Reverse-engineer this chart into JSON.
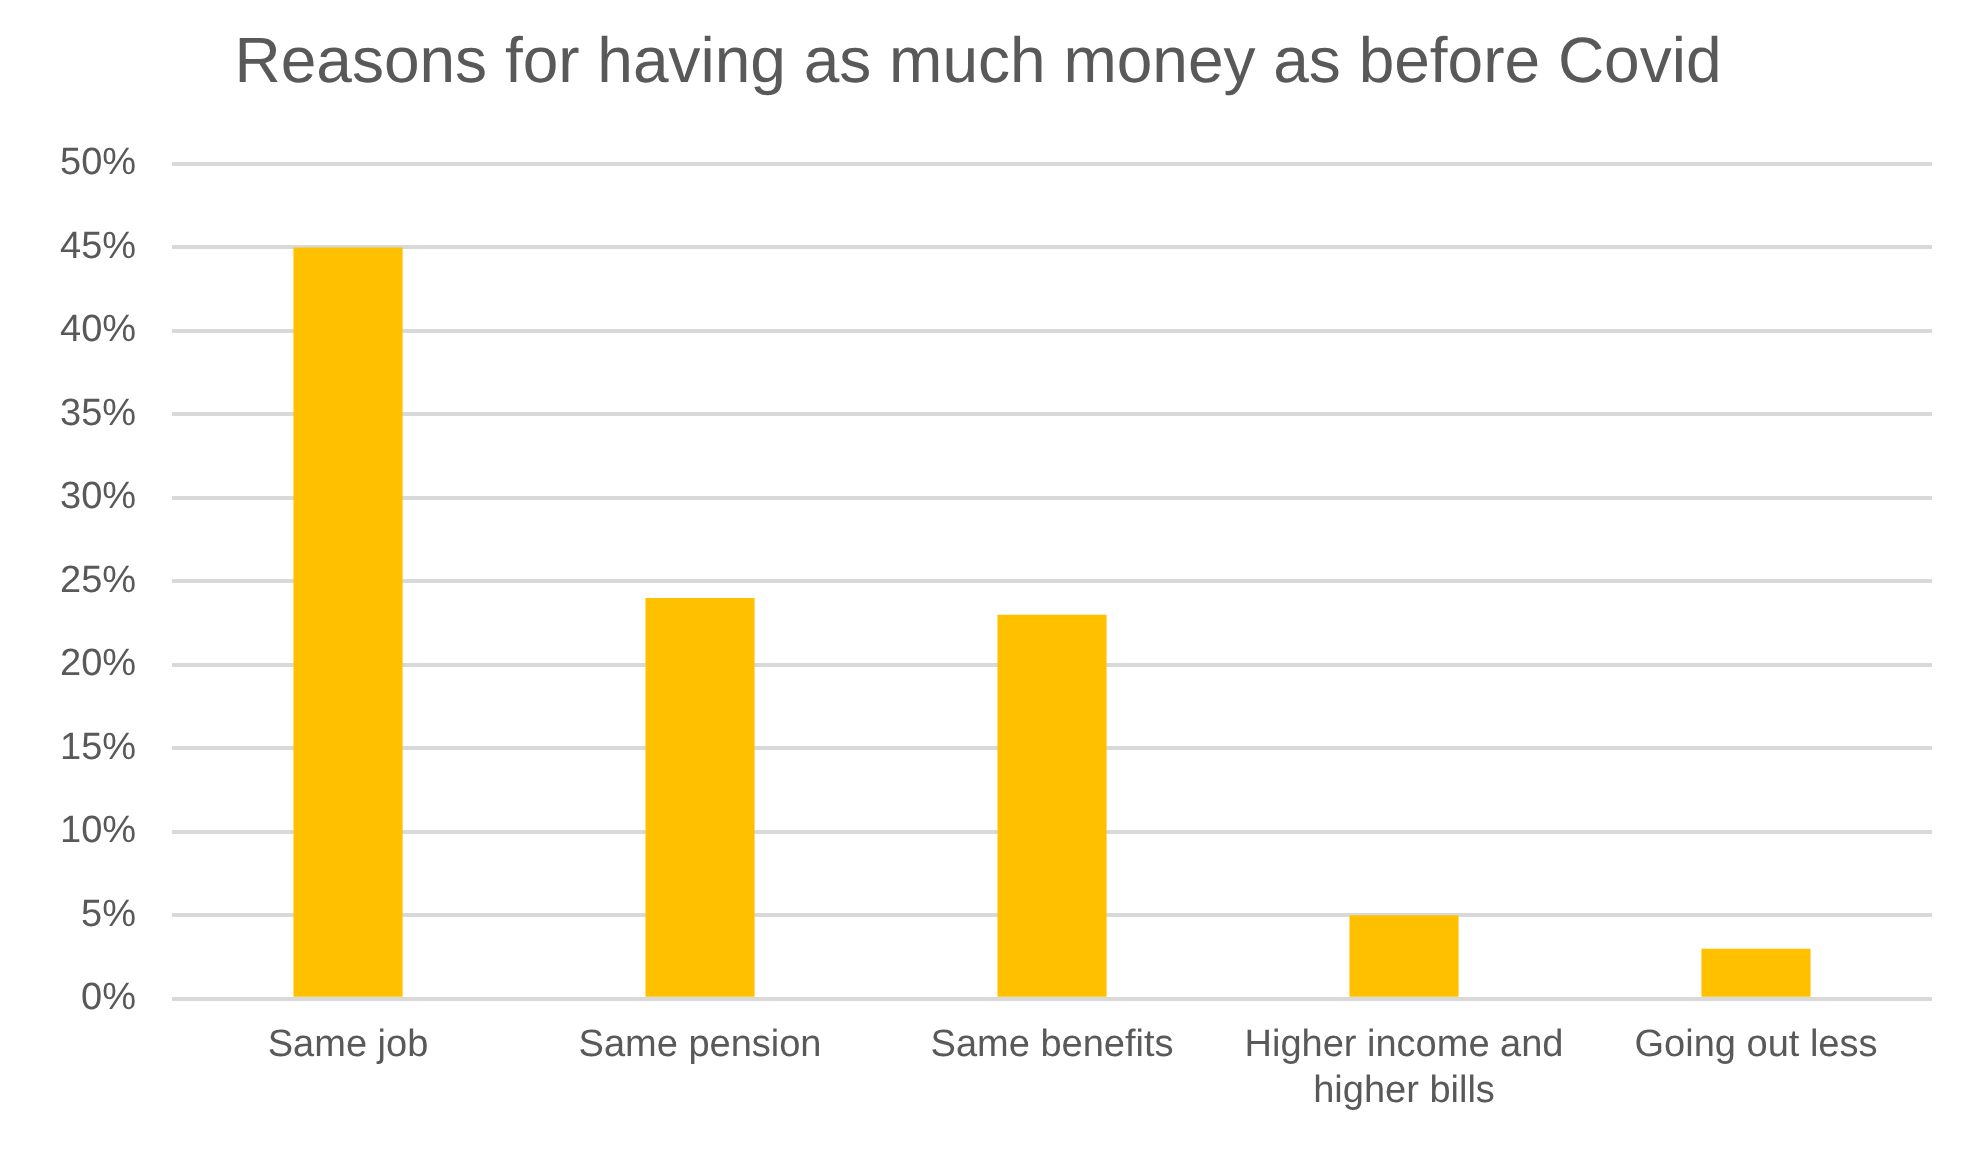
{
  "chart_data": {
    "type": "bar",
    "title": "Reasons for having as much money as before Covid",
    "categories": [
      "Same job",
      "Same pension",
      "Same benefits",
      "Higher income and higher bills",
      "Going out less"
    ],
    "values": [
      45,
      24,
      23,
      5,
      3
    ],
    "color": "#ffc000",
    "ylim": [
      0,
      50
    ],
    "yticks": [
      {
        "value": 0,
        "label": "0%"
      },
      {
        "value": 5,
        "label": "5%"
      },
      {
        "value": 10,
        "label": "10%"
      },
      {
        "value": 15,
        "label": "15%"
      },
      {
        "value": 20,
        "label": "20%"
      },
      {
        "value": 25,
        "label": "25%"
      },
      {
        "value": 30,
        "label": "30%"
      },
      {
        "value": 35,
        "label": "35%"
      },
      {
        "value": 40,
        "label": "40%"
      },
      {
        "value": 45,
        "label": "45%"
      },
      {
        "value": 50,
        "label": "50%"
      }
    ],
    "grid": "y",
    "legend": false
  }
}
